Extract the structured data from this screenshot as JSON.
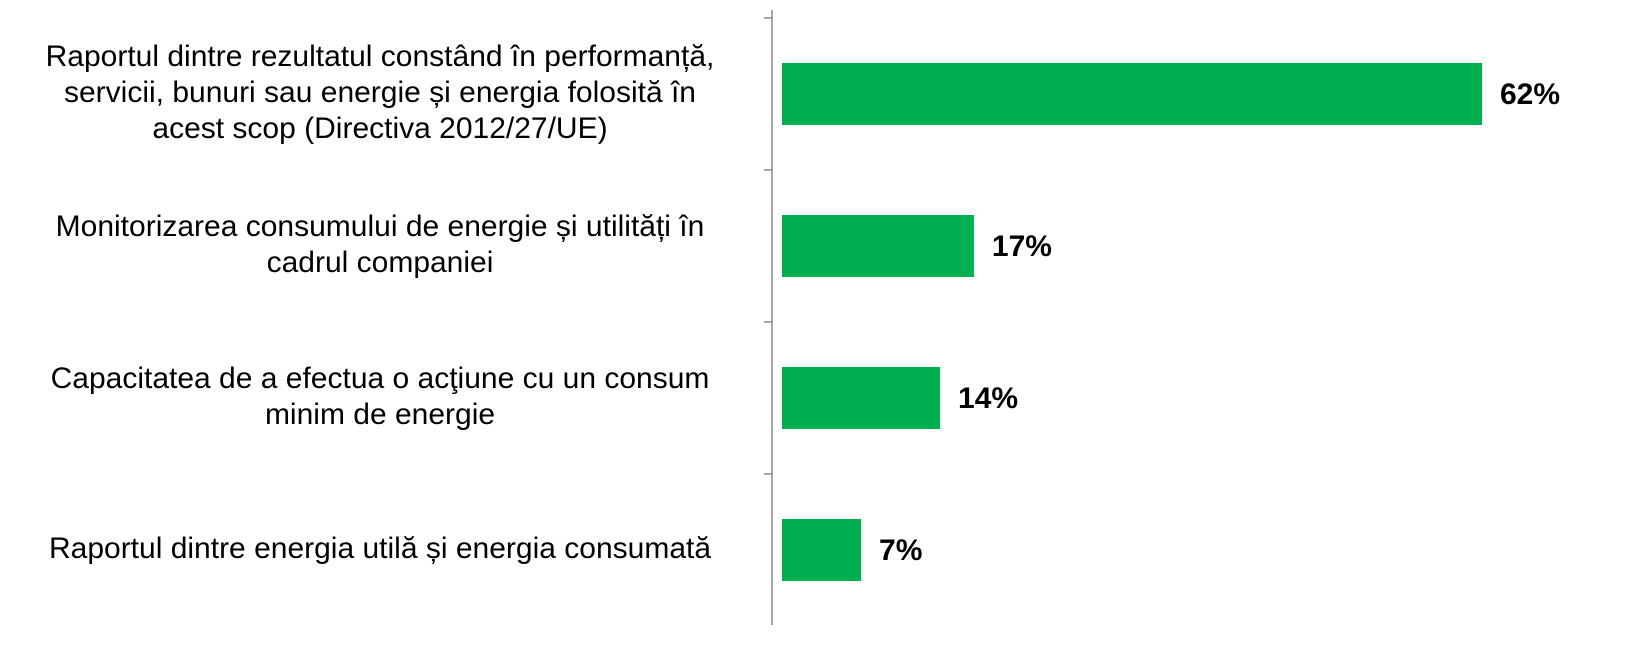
{
  "chart_data": {
    "type": "bar",
    "orientation": "horizontal",
    "categories": [
      [
        "Raportul dintre rezultatul constând în performanță,",
        "servicii, bunuri sau energie și energia folosită în",
        "acest scop (Directiva 2012/27/UE)"
      ],
      [
        "Monitorizarea consumului de energie și utilități în",
        "cadrul companiei"
      ],
      [
        "Capacitatea de a efectua o acţiune cu un consum",
        "minim de energie"
      ],
      [
        "Raportul dintre energia utilă și energia consumată"
      ]
    ],
    "values": [
      62,
      17,
      14,
      7
    ],
    "value_labels": [
      "62%",
      "17%",
      "14%",
      "7%"
    ],
    "color": "#00b050"
  }
}
